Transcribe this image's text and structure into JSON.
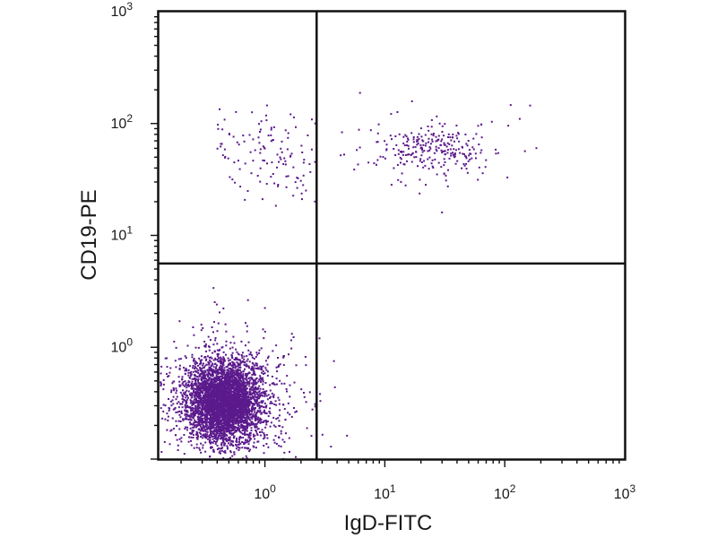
{
  "chart_data": {
    "type": "scatter",
    "xlabel": "IgD-FITC",
    "ylabel": "CD19-PE",
    "x_scale": "log",
    "y_scale": "log",
    "xlim": [
      0.13,
      1000
    ],
    "ylim": [
      0.1,
      1000
    ],
    "x_ticks": [
      {
        "value": 1,
        "base": "10",
        "exp": "0"
      },
      {
        "value": 10,
        "base": "10",
        "exp": "1"
      },
      {
        "value": 100,
        "base": "10",
        "exp": "2"
      },
      {
        "value": 1000,
        "base": "10",
        "exp": "3"
      }
    ],
    "y_ticks": [
      {
        "value": 1,
        "base": "10",
        "exp": "0"
      },
      {
        "value": 10,
        "base": "10",
        "exp": "1"
      },
      {
        "value": 100,
        "base": "10",
        "exp": "2"
      },
      {
        "value": 1000,
        "base": "10",
        "exp": "3"
      }
    ],
    "quadrant_gate": {
      "x": 2.7,
      "y": 5.6
    },
    "point_color": "#5b1a8c",
    "point_count": 5000,
    "series": [
      {
        "population_center": {
          "x": 0.45,
          "y": 0.33
        },
        "fraction": 0.91
      },
      {
        "population_center": {
          "x": 25,
          "y": 60
        },
        "fraction": 0.055
      },
      {
        "population_center": {
          "x": 0.9,
          "y": 55
        },
        "fraction": 0.025
      }
    ],
    "grid": false,
    "legend": "none"
  }
}
